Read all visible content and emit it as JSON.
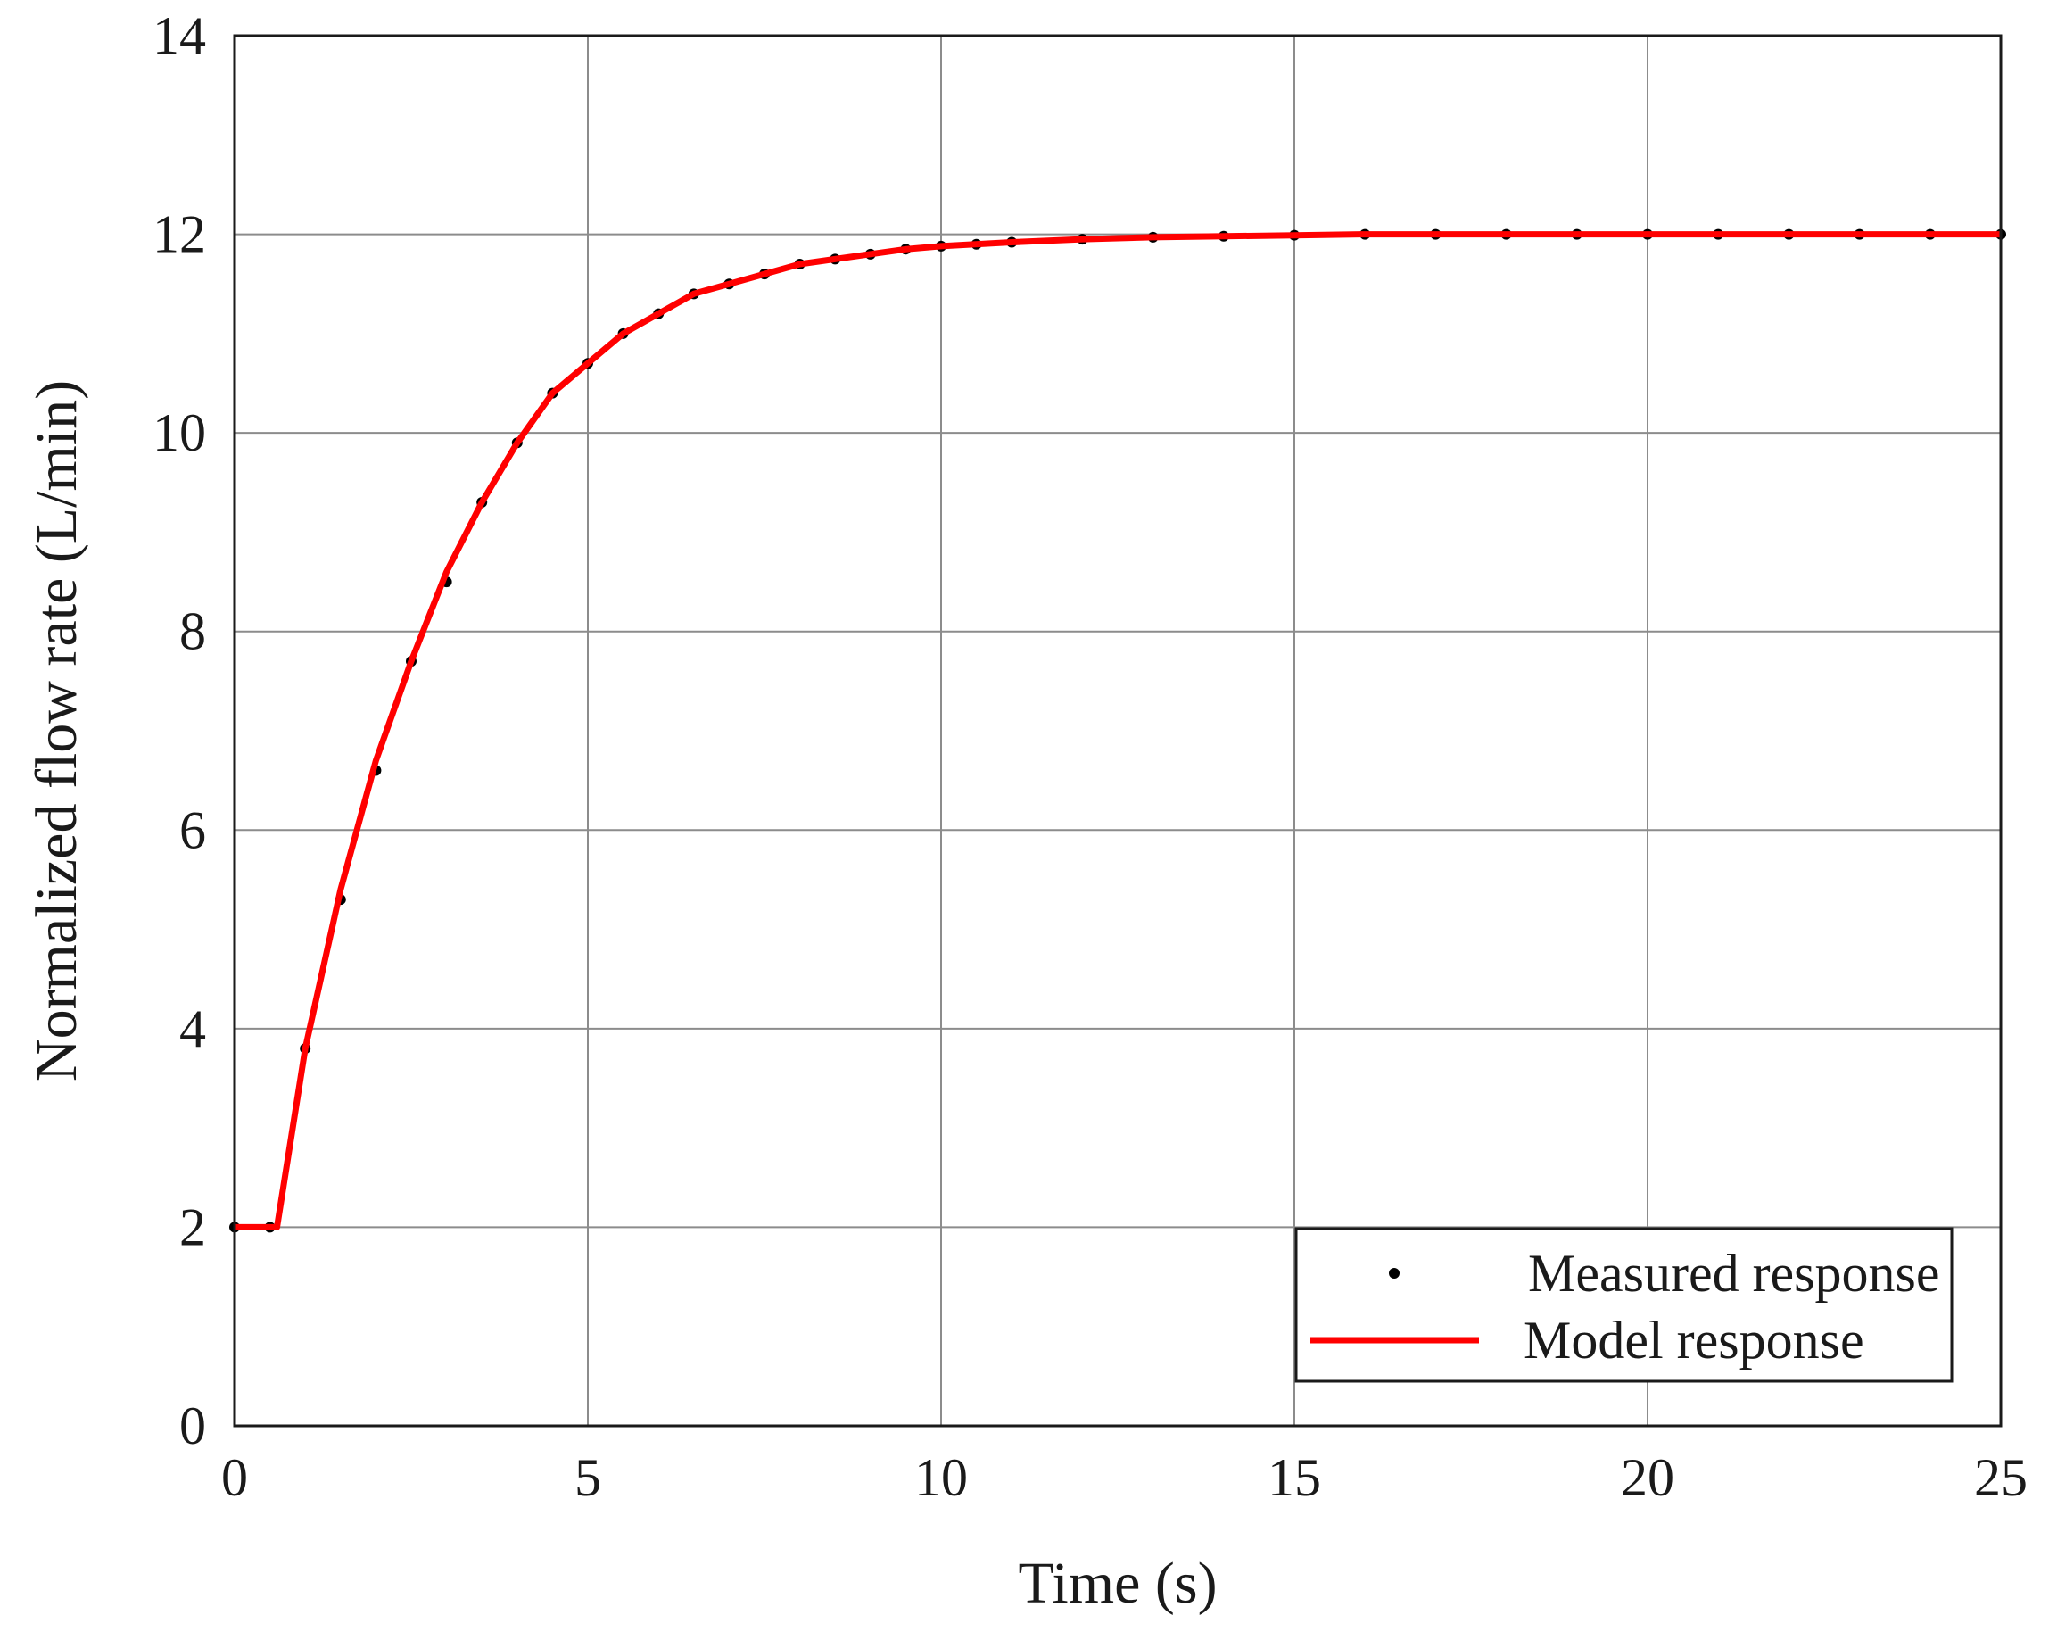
{
  "chart_data": {
    "type": "line",
    "xlabel": "Time (s)",
    "ylabel": "Normalized flow rate (L/min)",
    "xlim": [
      0,
      25
    ],
    "ylim": [
      0,
      14
    ],
    "x_ticks": [
      "0",
      "5",
      "10",
      "15",
      "20",
      "25"
    ],
    "y_ticks": [
      "0",
      "2",
      "4",
      "6",
      "8",
      "10",
      "12",
      "14"
    ],
    "grid": true,
    "legend_position": "bottom-right",
    "series": [
      {
        "name": "Measured response",
        "style": "scatter",
        "color": "#000000",
        "x": [
          0.0,
          0.5,
          1.0,
          1.5,
          2.0,
          2.5,
          3.0,
          3.5,
          4.0,
          4.5,
          5.0,
          5.5,
          6.0,
          6.5,
          7.0,
          7.5,
          8.0,
          8.5,
          9.0,
          9.5,
          10.0,
          10.5,
          11.0,
          12.0,
          13.0,
          14.0,
          15.0,
          16.0,
          17.0,
          18.0,
          19.0,
          20.0,
          21.0,
          22.0,
          23.0,
          24.0,
          25.0
        ],
        "y": [
          2.0,
          2.0,
          3.8,
          5.3,
          6.6,
          7.7,
          8.5,
          9.3,
          9.9,
          10.4,
          10.7,
          11.0,
          11.2,
          11.4,
          11.5,
          11.6,
          11.7,
          11.75,
          11.8,
          11.85,
          11.88,
          11.9,
          11.92,
          11.95,
          11.97,
          11.98,
          11.99,
          12.0,
          12.0,
          12.0,
          12.0,
          12.0,
          12.0,
          12.0,
          12.0,
          12.0,
          12.0
        ]
      },
      {
        "name": "Model response",
        "style": "line",
        "color": "#ff0000",
        "x": [
          0.0,
          0.6,
          1.0,
          1.5,
          2.0,
          2.5,
          3.0,
          3.5,
          4.0,
          4.5,
          5.0,
          5.5,
          6.0,
          6.5,
          7.0,
          7.5,
          8.0,
          8.5,
          9.0,
          9.5,
          10.0,
          11.0,
          12.0,
          13.0,
          14.0,
          15.0,
          16.0,
          18.0,
          20.0,
          22.0,
          25.0
        ],
        "y": [
          2.0,
          2.0,
          3.8,
          5.4,
          6.7,
          7.7,
          8.6,
          9.3,
          9.9,
          10.4,
          10.7,
          11.0,
          11.2,
          11.4,
          11.5,
          11.6,
          11.7,
          11.75,
          11.8,
          11.85,
          11.88,
          11.92,
          11.95,
          11.97,
          11.98,
          11.99,
          12.0,
          12.0,
          12.0,
          12.0,
          12.0
        ]
      }
    ]
  }
}
